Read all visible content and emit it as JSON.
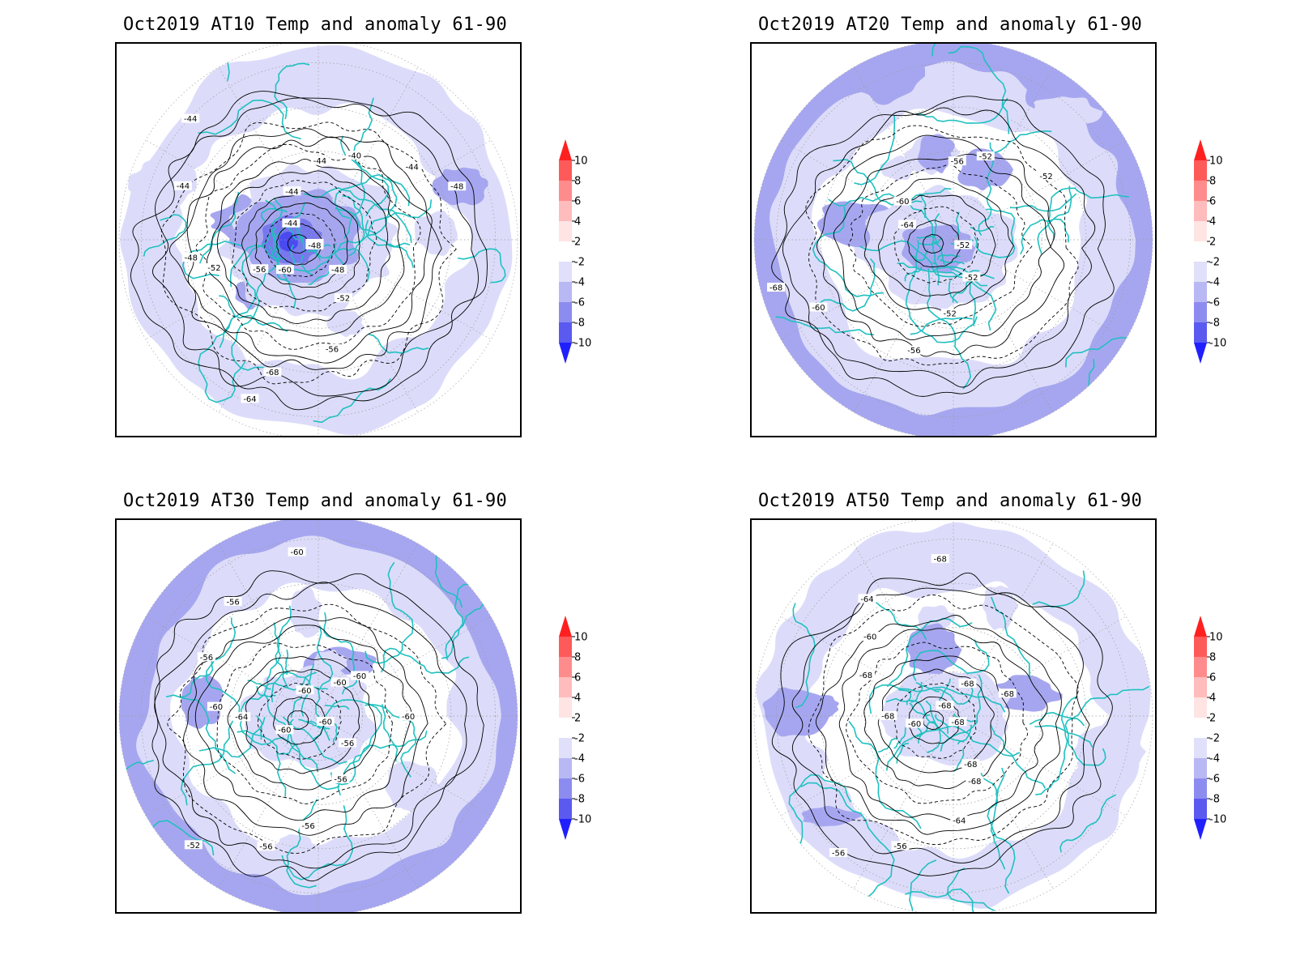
{
  "panels": [
    {
      "title": "Oct2019 AT10 Temp and anomaly 61-90",
      "contour_labels": [
        "-44",
        "-48",
        "-52",
        "-56",
        "-68",
        "-64",
        "-60",
        "-56",
        "-52",
        "-48",
        "-44",
        "-44",
        "-44",
        "-44",
        "-44",
        "-40",
        "-44",
        "-48",
        "-48"
      ],
      "outer_ring": false,
      "center_anomaly": "strong"
    },
    {
      "title": "Oct2019 AT20 Temp and anomaly 61-90",
      "contour_labels": [
        "-52",
        "-52",
        "-52",
        "-56",
        "-60",
        "-68",
        "-64",
        "-60",
        "-56",
        "-52",
        "-52"
      ],
      "outer_ring": true,
      "center_anomaly": "moderate"
    },
    {
      "title": "Oct2019 AT30 Temp and anomaly 61-90",
      "contour_labels": [
        "-60",
        "-56",
        "-56",
        "-56",
        "-56",
        "-52",
        "-60",
        "-64",
        "-60",
        "-56",
        "-56",
        "-60",
        "-60",
        "-60",
        "-60",
        "-60"
      ],
      "outer_ring": true,
      "center_anomaly": "weak"
    },
    {
      "title": "Oct2019 AT50 Temp and anomaly 61-90",
      "contour_labels": [
        "-68",
        "-68",
        "-68",
        "-64",
        "-56",
        "-56",
        "-60",
        "-68",
        "-68",
        "-60",
        "-64",
        "-68",
        "-68",
        "-68",
        "-68"
      ],
      "outer_ring": false,
      "center_anomaly": "weak"
    }
  ],
  "colorbar": {
    "ticks": [
      "10",
      "8",
      "6",
      "4",
      "2",
      "-2",
      "-4",
      "-6",
      "-8",
      "-10"
    ],
    "colors": [
      "#ff2020",
      "#ff5a5a",
      "#ff8c8c",
      "#ffbcbc",
      "#ffe4e4",
      "#ffffff",
      "#e0e0fa",
      "#b8b8f4",
      "#8c8cf0",
      "#5a5af0",
      "#2020ff"
    ]
  },
  "colors": {
    "coast": "#20c0c0",
    "contour": "#000000",
    "grid": "#9a9a9a",
    "light_neg": "#dcdcfa",
    "mid_neg": "#a6a6f0",
    "strong_neg": "#7878ee",
    "darkest_neg": "#4a4af0"
  }
}
